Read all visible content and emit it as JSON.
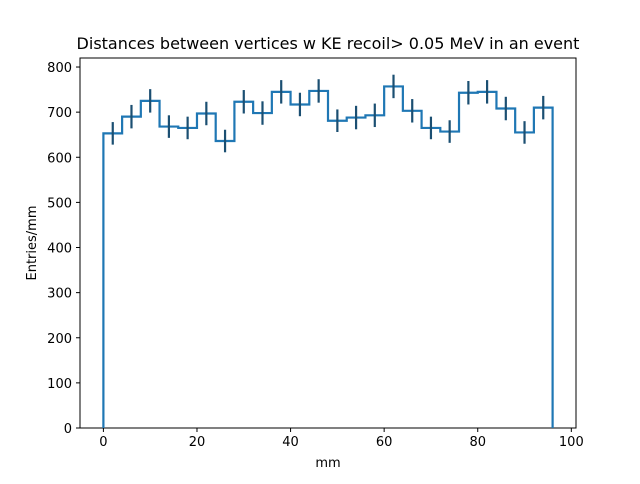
{
  "chart_data": {
    "type": "histogram",
    "title": "Distances between vertices w  KE recoil> 0.05 MeV in an event",
    "xlabel": "mm",
    "ylabel": "Entries/mm",
    "xlim": [
      -5,
      101
    ],
    "ylim": [
      0,
      820
    ],
    "xticks": [
      0,
      20,
      40,
      60,
      80,
      100
    ],
    "yticks": [
      0,
      100,
      200,
      300,
      400,
      500,
      600,
      700,
      800
    ],
    "grid": false,
    "color": "#1f77b4",
    "errorbar_color": "#1b4f72",
    "bin_edges": [
      0,
      4,
      8,
      12,
      16,
      20,
      24,
      28,
      32,
      36,
      40,
      44,
      48,
      52,
      56,
      60,
      64,
      68,
      72,
      76,
      80,
      84,
      88,
      92,
      96
    ],
    "series": [
      {
        "values": [
          653,
          690,
          725,
          668,
          665,
          697,
          636,
          723,
          698,
          745,
          717,
          747,
          681,
          688,
          693,
          757,
          703,
          665,
          657,
          743,
          745,
          708,
          655,
          710
        ],
        "errors": [
          25,
          26,
          26,
          25,
          25,
          26,
          25,
          26,
          26,
          26,
          26,
          26,
          25,
          26,
          26,
          26,
          26,
          25,
          25,
          26,
          26,
          26,
          25,
          26
        ]
      }
    ]
  }
}
